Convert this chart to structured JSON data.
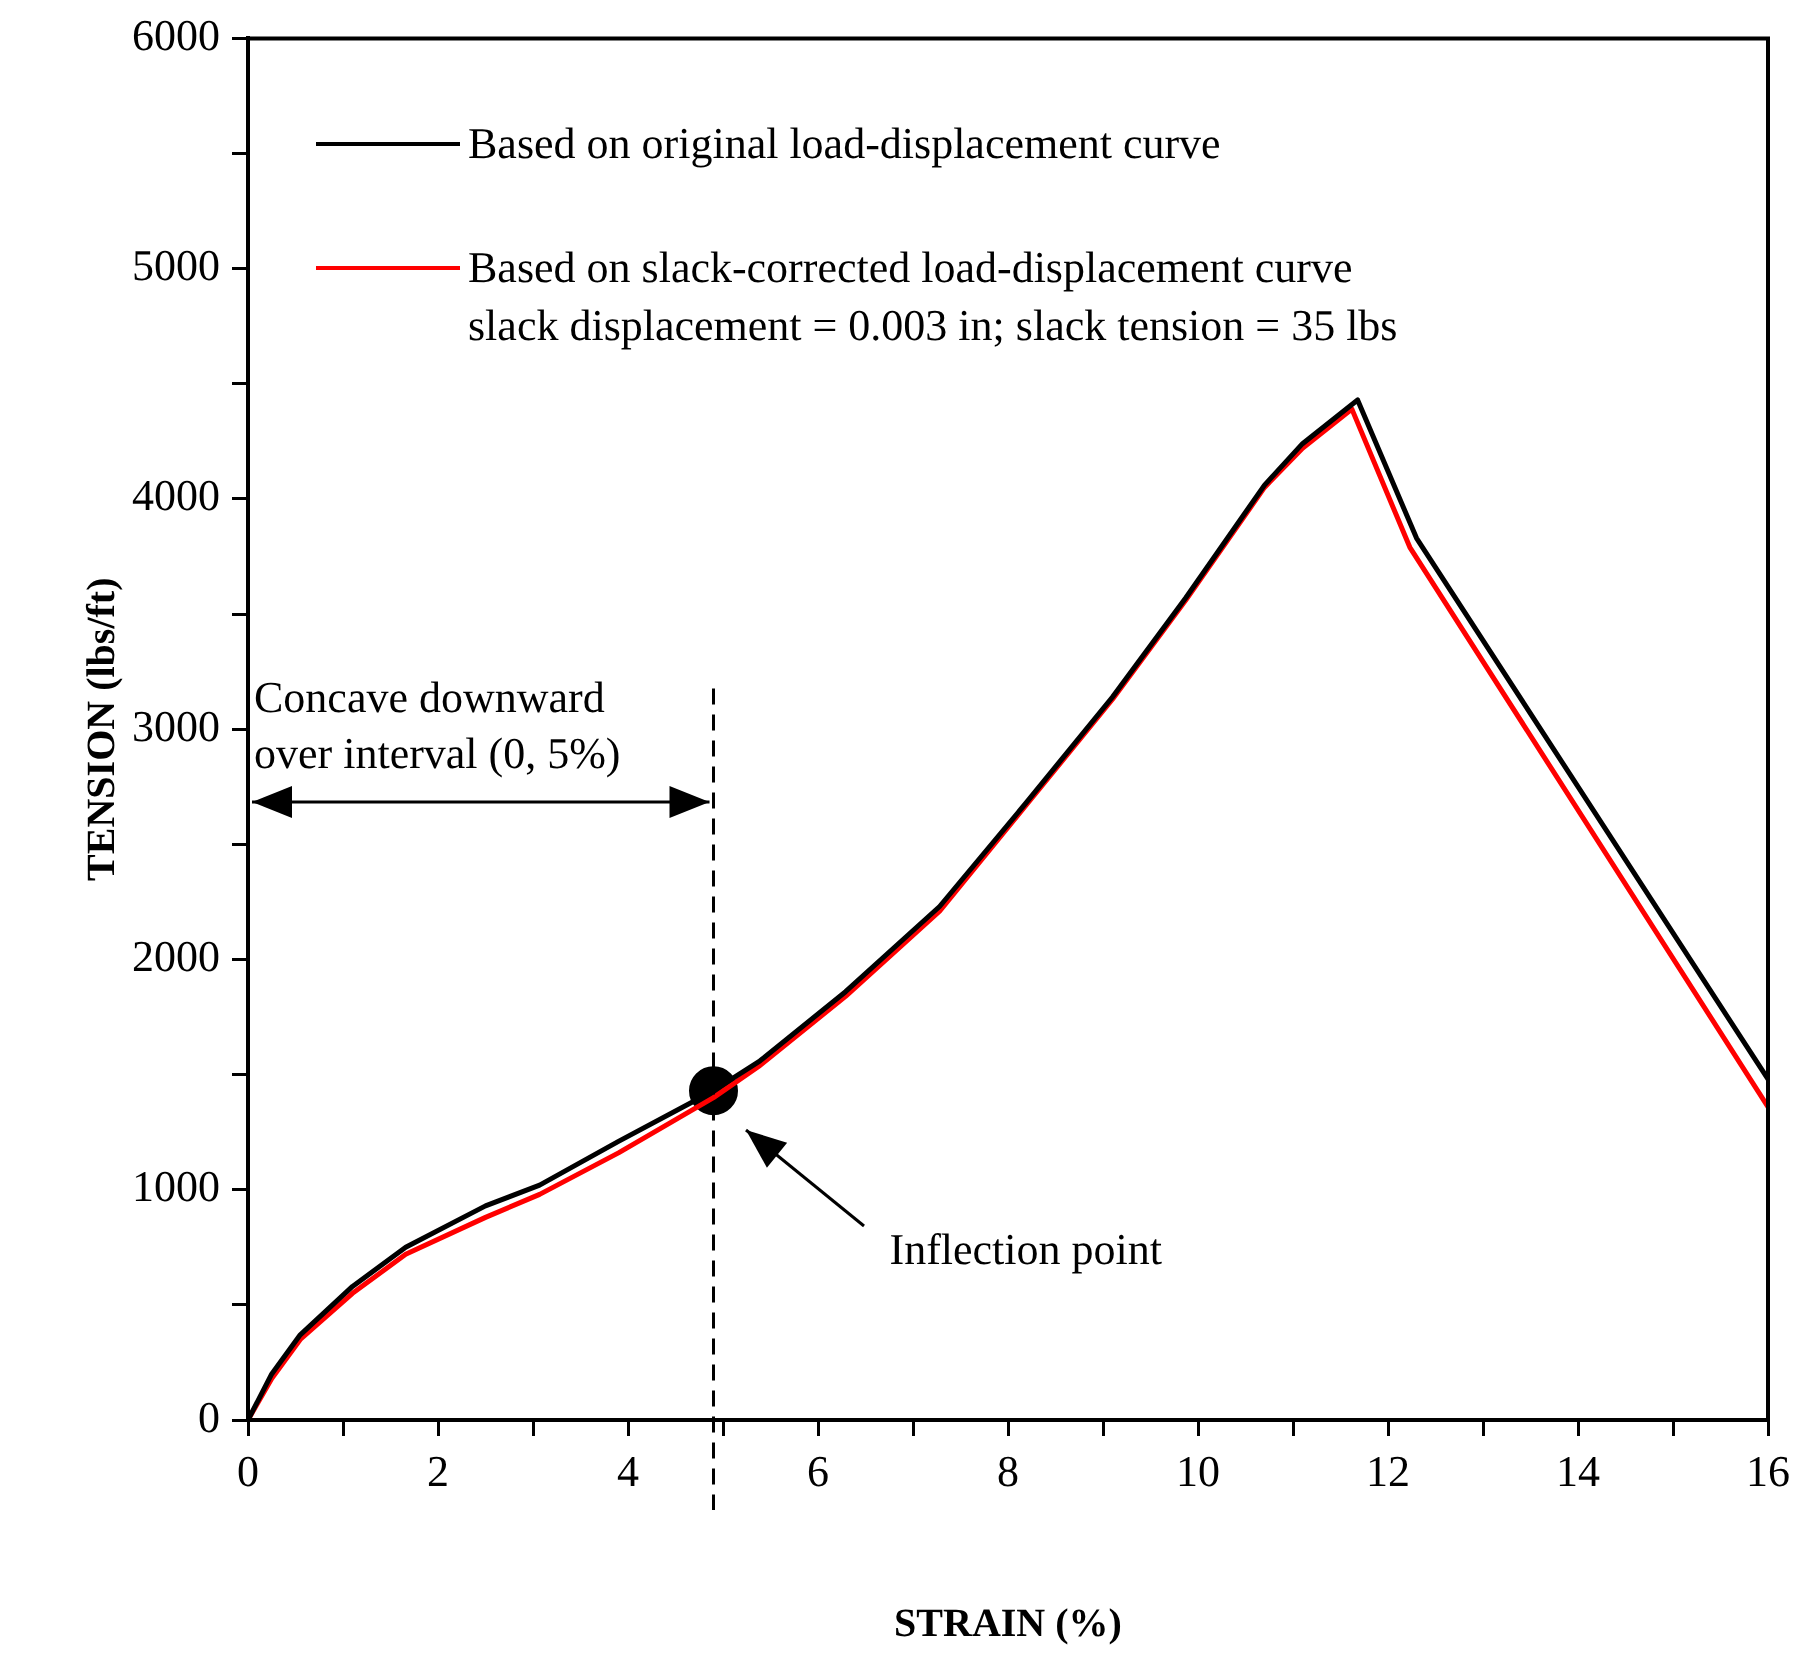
{
  "chart_data": {
    "type": "line",
    "xlabel": "STRAIN (%)",
    "ylabel": "TENSION (lbs/ft)",
    "xlim": [
      0,
      16
    ],
    "xticks": [
      0,
      {
        "value": 1,
        "label": null
      },
      2,
      {
        "value": 3,
        "label": null
      },
      4,
      {
        "value": 5,
        "label": null
      },
      6,
      {
        "value": 7,
        "label": null
      },
      8,
      {
        "value": 9,
        "label": null
      },
      10,
      {
        "value": 11,
        "label": null
      },
      12,
      {
        "value": 13,
        "label": null
      },
      14,
      {
        "value": 15,
        "label": null
      },
      16
    ],
    "ylim": [
      0,
      6000
    ],
    "yticks": [
      0,
      {
        "value": 500,
        "label": null
      },
      1000,
      {
        "value": 1500,
        "label": null
      },
      2000,
      {
        "value": 2500,
        "label": null
      },
      3000,
      {
        "value": 3500,
        "label": null
      },
      4000,
      {
        "value": 4500,
        "label": null
      },
      5000,
      {
        "value": 5500,
        "label": null
      },
      6000
    ],
    "grid": false,
    "legend": "top left",
    "series": [
      {
        "name": "Based on original load-displacement curve",
        "color": "#000000",
        "type": "line",
        "marker": "none",
        "x": [
          0,
          0.25,
          0.55,
          1.1,
          1.66,
          2.5,
          3.07,
          3.9,
          4.9,
          5.39,
          6.29,
          7.28,
          8.19,
          9.1,
          9.87,
          10.7,
          11.1,
          11.68,
          12.3,
          16
        ],
        "values": [
          0,
          200,
          370,
          580,
          750,
          930,
          1020,
          1210,
          1430,
          1560,
          1860,
          2230,
          2680,
          3140,
          3570,
          4060,
          4240,
          4430,
          3830,
          1480
        ]
      },
      {
        "name": "Based on slack-corrected load-displacement curve",
        "color": "#ff0000",
        "type": "line",
        "marker": "none",
        "x": [
          0,
          0.25,
          0.55,
          1.1,
          1.66,
          2.5,
          3.07,
          3.9,
          4.9,
          5.39,
          6.29,
          7.28,
          8.19,
          9.1,
          9.87,
          10.7,
          11.1,
          11.62,
          12.23,
          16
        ],
        "values": [
          0,
          180,
          350,
          550,
          720,
          880,
          980,
          1160,
          1400,
          1540,
          1840,
          2210,
          2670,
          3130,
          3560,
          4050,
          4220,
          4390,
          3790,
          1360
        ]
      },
      {
        "color": "#000000",
        "type": "scatter",
        "marker": "circle",
        "x": [
          4.9
        ],
        "values": [
          1430
        ]
      }
    ],
    "ref_lines": [
      {
        "axis": "x",
        "value": 4.9,
        "color": "#000000",
        "line_style": "dashed"
      }
    ],
    "annotations": [
      "slack displacement = 0.003 in; slack tension = 35 lbs",
      {
        "text": "Concave downward over interval (0, 5%)",
        "x": 4.9,
        "y": 2680
      },
      "Inflection point"
    ]
  }
}
